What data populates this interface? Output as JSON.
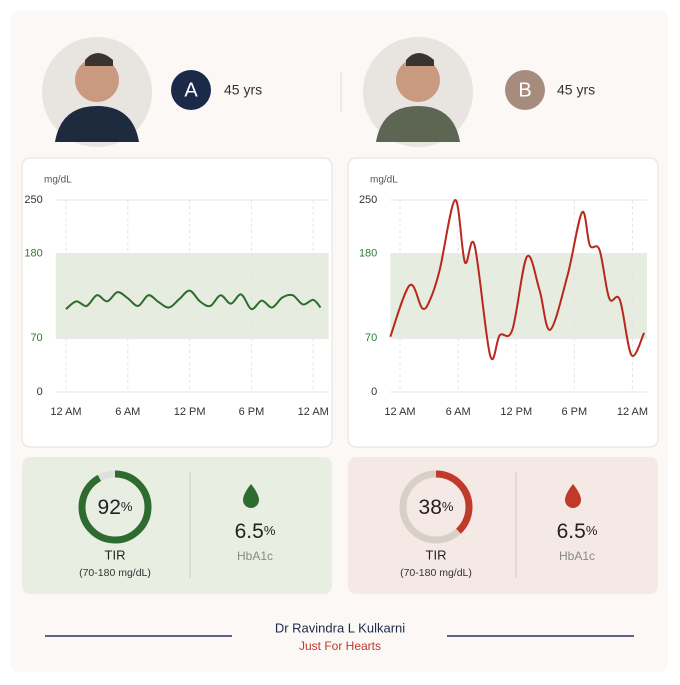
{
  "patients": [
    {
      "label": "A",
      "age": "45 yrs",
      "badge_color": "#1c2a4a"
    },
    {
      "label": "B",
      "age": "45 yrs",
      "badge_color": "#a78b7d"
    }
  ],
  "chart_data": [
    {
      "type": "line",
      "y_label": "mg/dL",
      "xlim": [
        -1,
        25.5
      ],
      "xticks": [
        {
          "value": 0,
          "label": "12 AM"
        },
        {
          "value": 6,
          "label": "6 AM"
        },
        {
          "value": 12,
          "label": "12 PM"
        },
        {
          "value": 18,
          "label": "6 PM"
        },
        {
          "value": 24,
          "label": "12 AM"
        }
      ],
      "ylim": [
        0,
        250
      ],
      "yticks": [
        0,
        70,
        180,
        250
      ],
      "target_range": [
        70,
        180
      ],
      "target_color": "#2e7d32",
      "band_color": "#e6ecdf",
      "series": [
        {
          "color": "#2e6b2e",
          "x": [
            0,
            1,
            2,
            3,
            4,
            5,
            6,
            7,
            8,
            9,
            10,
            11,
            12,
            13,
            14,
            15,
            16,
            17,
            18,
            19,
            20,
            21,
            22,
            23,
            24,
            24.7
          ],
          "values": [
            108,
            118,
            112,
            126,
            118,
            130,
            122,
            112,
            126,
            117,
            110,
            121,
            132,
            118,
            112,
            126,
            115,
            127,
            108,
            119,
            110,
            123,
            126,
            114,
            120,
            110
          ]
        }
      ]
    },
    {
      "type": "line",
      "y_label": "mg/dL",
      "xlim": [
        -1,
        25.5
      ],
      "xticks": [
        {
          "value": 0,
          "label": "12 AM"
        },
        {
          "value": 6,
          "label": "6 AM"
        },
        {
          "value": 12,
          "label": "12 PM"
        },
        {
          "value": 18,
          "label": "6 PM"
        },
        {
          "value": 24,
          "label": "12 AM"
        }
      ],
      "ylim": [
        0,
        250
      ],
      "yticks": [
        0,
        70,
        180,
        250
      ],
      "target_range": [
        70,
        180
      ],
      "target_color": "#2e7d32",
      "band_color": "#e6ecdf",
      "series": [
        {
          "color": "#b8281e",
          "x": [
            -1,
            1,
            2.3,
            3.1,
            4.1,
            5.7,
            6.7,
            7.7,
            9.3,
            10.3,
            11.6,
            13.1,
            14.4,
            15.5,
            17.3,
            18.8,
            19.6,
            20.6,
            21.6,
            22.7,
            23.9,
            25.2
          ],
          "values": [
            72,
            139,
            109,
            120,
            159,
            250,
            169,
            191,
            48,
            74,
            81,
            176,
            133,
            81,
            152,
            234,
            191,
            185,
            122,
            120,
            48,
            77
          ]
        }
      ]
    }
  ],
  "stats": [
    {
      "tir_value": 92,
      "tir_unit": "%",
      "tir_label": "TIR",
      "tir_range": "(70-180 mg/dL)",
      "hba1c_value": 6.5,
      "hba1c_unit": "%",
      "hba1c_label": "HbA1c",
      "color": "#2e6b2e",
      "track": "#e0e0e0",
      "bg": "#e9eee3"
    },
    {
      "tir_value": 38,
      "tir_unit": "%",
      "tir_label": "TIR",
      "tir_range": "(70-180 mg/dL)",
      "hba1c_value": 6.5,
      "hba1c_unit": "%",
      "hba1c_label": "HbA1c",
      "color": "#c0392b",
      "track": "#d9cfc9",
      "bg": "#f5e9e5"
    }
  ],
  "footer": {
    "name": "Dr Ravindra L Kulkarni",
    "subtitle": "Just For Hearts"
  }
}
